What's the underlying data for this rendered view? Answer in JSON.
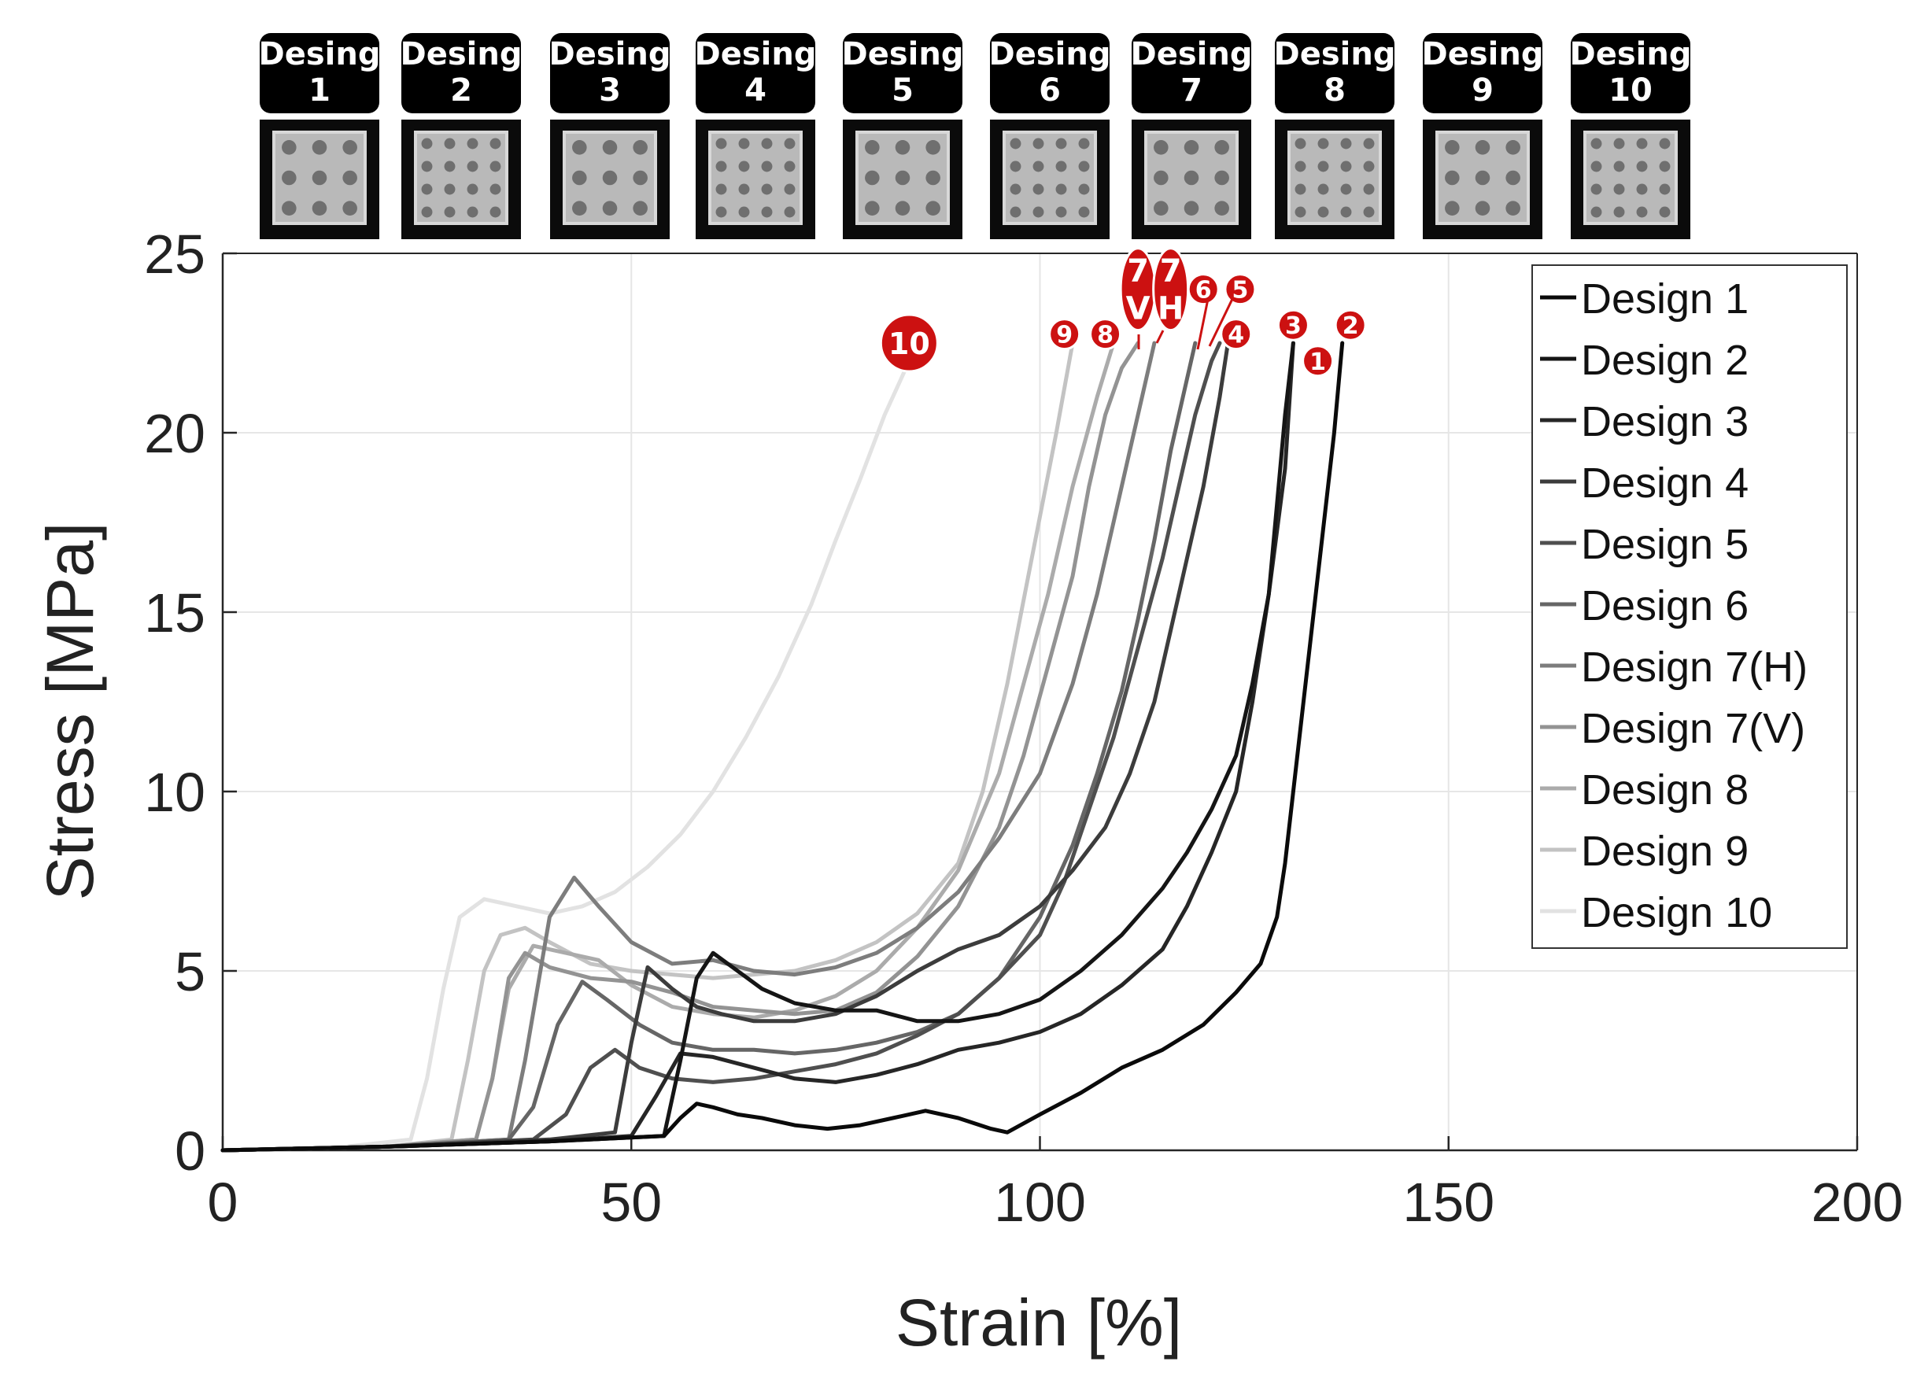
{
  "chart_data": {
    "type": "line",
    "title": "",
    "xlabel": "Strain [%]",
    "ylabel": "Stress [MPa]",
    "xlim": [
      0,
      200
    ],
    "ylim": [
      0,
      25
    ],
    "xticks": [
      0,
      50,
      100,
      150,
      200
    ],
    "yticks": [
      0,
      5,
      10,
      15,
      20,
      25
    ],
    "grid": true,
    "legend_position": "top-right",
    "design_panel": {
      "titles": [
        {
          "word": "Desing",
          "num": "1"
        },
        {
          "word": "Desing",
          "num": "2"
        },
        {
          "word": "Desing",
          "num": "3"
        },
        {
          "word": "Desing",
          "num": "4"
        },
        {
          "word": "Desing",
          "num": "5"
        },
        {
          "word": "Desing",
          "num": "6"
        },
        {
          "word": "Desing",
          "num": "7"
        },
        {
          "word": "Desing",
          "num": "8"
        },
        {
          "word": "Desing",
          "num": "9"
        },
        {
          "word": "Desing",
          "num": "10"
        }
      ]
    },
    "series": [
      {
        "name": "Design 1",
        "color": "#0a0a0a",
        "x": [
          0,
          20,
          40,
          54,
          56,
          58,
          60,
          63,
          66,
          70,
          74,
          78,
          82,
          86,
          90,
          94,
          96,
          100,
          105,
          110,
          115,
          120,
          124,
          127,
          129,
          130,
          131,
          132,
          133,
          134,
          135,
          136,
          137
        ],
        "y": [
          0,
          0.1,
          0.25,
          0.4,
          0.9,
          1.3,
          1.2,
          1.0,
          0.9,
          0.7,
          0.6,
          0.7,
          0.9,
          1.1,
          0.9,
          0.6,
          0.5,
          1.0,
          1.6,
          2.3,
          2.8,
          3.5,
          4.4,
          5.2,
          6.5,
          8.0,
          10.0,
          12.0,
          14.0,
          16.0,
          18.0,
          20.0,
          22.5
        ]
      },
      {
        "name": "Design 2",
        "color": "#151515",
        "x": [
          0,
          20,
          40,
          54,
          56,
          58,
          60,
          63,
          66,
          70,
          75,
          80,
          85,
          90,
          95,
          100,
          105,
          110,
          115,
          118,
          121,
          124,
          126,
          128,
          129,
          130,
          131
        ],
        "y": [
          0,
          0.1,
          0.25,
          0.4,
          2.5,
          4.8,
          5.5,
          5.0,
          4.5,
          4.1,
          3.9,
          3.9,
          3.6,
          3.6,
          3.8,
          4.2,
          5.0,
          6.0,
          7.3,
          8.3,
          9.5,
          11.0,
          13.0,
          15.5,
          18.0,
          20.5,
          22.5
        ]
      },
      {
        "name": "Design 3",
        "color": "#262626",
        "x": [
          0,
          20,
          40,
          50,
          53,
          56,
          60,
          65,
          70,
          75,
          80,
          85,
          90,
          95,
          100,
          105,
          110,
          115,
          118,
          121,
          124,
          126,
          128,
          130,
          131
        ],
        "y": [
          0,
          0.1,
          0.25,
          0.4,
          1.5,
          2.7,
          2.6,
          2.3,
          2.0,
          1.9,
          2.1,
          2.4,
          2.8,
          3.0,
          3.3,
          3.8,
          4.6,
          5.6,
          6.8,
          8.3,
          10.0,
          12.5,
          15.5,
          19.0,
          22.5
        ]
      },
      {
        "name": "Design 4",
        "color": "#3c3c3c",
        "x": [
          0,
          20,
          40,
          48,
          50,
          52,
          55,
          58,
          61,
          65,
          70,
          75,
          80,
          85,
          90,
          95,
          100,
          104,
          108,
          111,
          114,
          116,
          118,
          120,
          122,
          123
        ],
        "y": [
          0,
          0.1,
          0.3,
          0.5,
          3.0,
          5.1,
          4.5,
          4.0,
          3.8,
          3.6,
          3.6,
          3.8,
          4.3,
          5.0,
          5.6,
          6.0,
          6.8,
          7.8,
          9.0,
          10.5,
          12.5,
          14.5,
          16.5,
          18.5,
          21.0,
          22.5
        ]
      },
      {
        "name": "Design 5",
        "color": "#4f4f4f",
        "x": [
          0,
          20,
          38,
          42,
          45,
          48,
          51,
          55,
          60,
          65,
          70,
          75,
          80,
          85,
          90,
          95,
          100,
          103,
          106,
          109,
          112,
          115,
          117,
          119,
          121,
          122
        ],
        "y": [
          0,
          0.1,
          0.3,
          1.0,
          2.3,
          2.8,
          2.3,
          2.0,
          1.9,
          2.0,
          2.2,
          2.4,
          2.7,
          3.2,
          3.8,
          4.8,
          6.0,
          7.5,
          9.5,
          11.5,
          14.0,
          16.5,
          18.5,
          20.5,
          22.0,
          22.5
        ]
      },
      {
        "name": "Design 6",
        "color": "#666666",
        "x": [
          0,
          20,
          35,
          38,
          41,
          44,
          47,
          51,
          55,
          60,
          65,
          70,
          75,
          80,
          85,
          90,
          95,
          100,
          104,
          107,
          110,
          112,
          114,
          116,
          118,
          119
        ],
        "y": [
          0,
          0.1,
          0.3,
          1.2,
          3.5,
          4.7,
          4.2,
          3.5,
          3.0,
          2.8,
          2.8,
          2.7,
          2.8,
          3.0,
          3.3,
          3.8,
          4.8,
          6.5,
          8.5,
          10.5,
          12.8,
          14.8,
          17.0,
          19.5,
          21.5,
          22.5
        ]
      },
      {
        "name": "Design 7(H)",
        "color": "#7d7d7d",
        "x": [
          0,
          20,
          35,
          37,
          40,
          43,
          46,
          50,
          55,
          60,
          65,
          70,
          75,
          80,
          85,
          90,
          95,
          100,
          104,
          107,
          109,
          111,
          112.5,
          114
        ],
        "y": [
          0,
          0.1,
          0.3,
          2.5,
          6.5,
          7.6,
          6.8,
          5.8,
          5.2,
          5.3,
          5.0,
          4.9,
          5.1,
          5.5,
          6.2,
          7.2,
          8.7,
          10.5,
          13.0,
          15.5,
          17.5,
          19.5,
          21.0,
          22.5
        ]
      },
      {
        "name": "Design 7(V)",
        "color": "#939393",
        "x": [
          0,
          20,
          31,
          33,
          35,
          37,
          40,
          45,
          50,
          55,
          60,
          65,
          70,
          75,
          80,
          85,
          90,
          95,
          98,
          101,
          104,
          106,
          108,
          110,
          112
        ],
        "y": [
          0,
          0.1,
          0.3,
          2.0,
          4.8,
          5.5,
          5.1,
          4.8,
          4.7,
          4.4,
          4.0,
          3.9,
          3.8,
          3.9,
          4.4,
          5.4,
          6.8,
          9.0,
          11.0,
          13.5,
          16.0,
          18.5,
          20.5,
          21.8,
          22.5
        ]
      },
      {
        "name": "Design 8",
        "color": "#ababab",
        "x": [
          0,
          20,
          31,
          33,
          35,
          38,
          42,
          46,
          50,
          55,
          60,
          65,
          70,
          75,
          80,
          85,
          90,
          95,
          98,
          101,
          104,
          107,
          109
        ],
        "y": [
          0,
          0.1,
          0.3,
          2.0,
          4.5,
          5.7,
          5.5,
          5.3,
          4.6,
          4.0,
          3.8,
          3.7,
          3.9,
          4.3,
          5.0,
          6.2,
          7.8,
          10.5,
          13.0,
          15.5,
          18.5,
          21.0,
          22.5
        ]
      },
      {
        "name": "Design 9",
        "color": "#c3c3c3",
        "x": [
          0,
          20,
          28,
          30,
          32,
          34,
          37,
          40,
          45,
          50,
          55,
          60,
          65,
          70,
          75,
          80,
          85,
          90,
          93,
          96,
          99,
          102,
          104
        ],
        "y": [
          0,
          0.1,
          0.3,
          2.5,
          5.0,
          6.0,
          6.2,
          5.8,
          5.2,
          5.0,
          4.9,
          4.8,
          4.9,
          5.0,
          5.3,
          5.8,
          6.6,
          8.0,
          10.0,
          13.0,
          16.5,
          20.0,
          22.5
        ]
      },
      {
        "name": "Design 10",
        "color": "#e2e2e2",
        "x": [
          0,
          15,
          23,
          25,
          27,
          29,
          32,
          36,
          40,
          44,
          48,
          52,
          56,
          60,
          64,
          68,
          72,
          75,
          78,
          81,
          83,
          84
        ],
        "y": [
          0,
          0.1,
          0.3,
          2.0,
          4.5,
          6.5,
          7.0,
          6.8,
          6.6,
          6.8,
          7.2,
          7.9,
          8.8,
          10.0,
          11.5,
          13.2,
          15.2,
          17.0,
          18.7,
          20.5,
          21.5,
          22.0
        ]
      }
    ],
    "failure_markers": [
      {
        "text": "10",
        "x": 84,
        "y": 22.5,
        "big": true
      },
      {
        "text": "9",
        "x": 103,
        "y": 22.75,
        "big": false
      },
      {
        "text": "8",
        "x": 108,
        "y": 22.75,
        "big": false
      },
      {
        "text": "7",
        "sub": "V",
        "x": 112,
        "y": 24.0,
        "oval": true
      },
      {
        "text": "7",
        "sub": "H",
        "x": 116,
        "y": 24.0,
        "oval": true
      },
      {
        "text": "6",
        "x": 120,
        "y": 24.0,
        "big": false
      },
      {
        "text": "5",
        "x": 124.5,
        "y": 24.0,
        "big": false
      },
      {
        "text": "4",
        "x": 124,
        "y": 22.75,
        "big": false
      },
      {
        "text": "3",
        "x": 131,
        "y": 23.0,
        "big": false
      },
      {
        "text": "2",
        "x": 138,
        "y": 23.0,
        "big": false
      },
      {
        "text": "1",
        "x": 134,
        "y": 22.0,
        "big": false
      }
    ]
  }
}
